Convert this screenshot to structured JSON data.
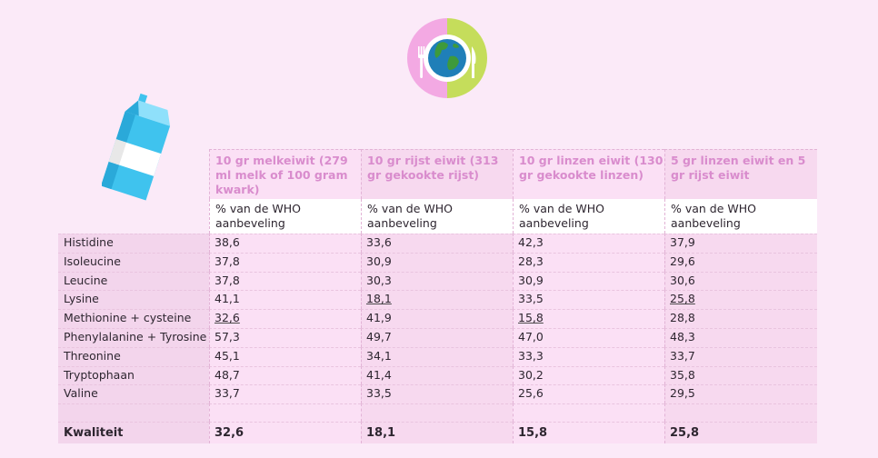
{
  "headers": [
    "10 gr melkeiwit (279 ml melk of 100 gram kwark)",
    "10 gr rijst eiwit (313 gr gekookte rijst)",
    "10 gr  linzen eiwit (130 gr gekookte linzen)",
    "5 gr linzen eiwit en 5 gr rijst eiwit"
  ],
  "subheader": "% van de WHO aanbeveling",
  "rows": [
    {
      "name": "Histidine",
      "values": [
        "38,6",
        "33,6",
        "42,3",
        "37,9"
      ]
    },
    {
      "name": "Isoleucine",
      "values": [
        "37,8",
        "30,9",
        "28,3",
        "29,6"
      ]
    },
    {
      "name": "Leucine",
      "values": [
        "37,8",
        "30,3",
        "30,9",
        "30,6"
      ]
    },
    {
      "name": "Lysine",
      "values": [
        "41,1",
        "18,1",
        "33,5",
        "25,8"
      ]
    },
    {
      "name": "Methionine + cysteine",
      "values": [
        "32,6",
        "41,9",
        "15,8",
        "28,8"
      ]
    },
    {
      "name": "Phenylalanine + Tyrosine",
      "values": [
        "57,3",
        "49,7",
        "47,0",
        "48,3"
      ]
    },
    {
      "name": "Threonine",
      "values": [
        "45,1",
        "34,1",
        "33,3",
        "33,7"
      ]
    },
    {
      "name": "Tryptophaan",
      "values": [
        "48,7",
        "41,4",
        "30,2",
        "35,8"
      ]
    },
    {
      "name": "Valine",
      "values": [
        "33,7",
        "33,5",
        "25,6",
        "29,5"
      ]
    }
  ],
  "total": {
    "name": "Kwaliteit",
    "values": [
      "32,6",
      "18,1",
      "15,8",
      "25,8"
    ]
  },
  "icons": {
    "plate": "globe-plate-icon",
    "milk": "milk-carton-icon"
  },
  "colors": {
    "background": "#fbeaf8",
    "header_text": "#d98ccd",
    "plate_pink": "#f3a9e3",
    "plate_green": "#c5dd5b",
    "milk_blue": "#3fc3ee"
  }
}
